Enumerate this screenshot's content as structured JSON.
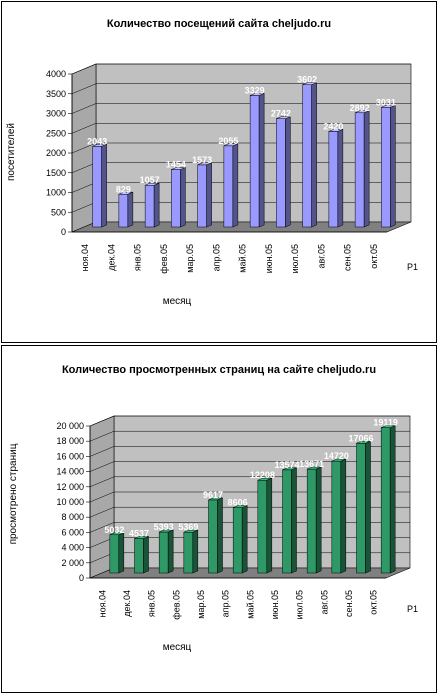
{
  "chart_data": [
    {
      "type": "bar",
      "title": "Количество посещений сайта cheljudo.ru",
      "xlabel": "месяц",
      "ylabel": "посетителей",
      "ylim": [
        0,
        4000
      ],
      "yticks": [
        "0",
        "500",
        "1000",
        "1500",
        "2000",
        "2500",
        "3000",
        "3500",
        "4000"
      ],
      "categories": [
        "ноя.04",
        "дек.04",
        "янв.05",
        "фев.05",
        "мар.05",
        "апр.05",
        "май.05",
        "июн.05",
        "июл.05",
        "авг.05",
        "сен.05",
        "окт.05"
      ],
      "series": [
        {
          "name": "Р1",
          "values": [
            2043,
            829,
            1057,
            1454,
            1573,
            2055,
            3329,
            2742,
            3602,
            2420,
            2892,
            3031
          ]
        }
      ],
      "data_labels": [
        "2043",
        "829",
        "1057",
        "1454",
        "1573",
        "2055",
        "3329",
        "2742",
        "3602",
        "2420",
        "2892",
        "3031"
      ],
      "color": "#9999ff",
      "grid": true,
      "legend_position": "right"
    },
    {
      "type": "bar",
      "title": "Количество просмотренных страниц на сайте cheljudo.ru",
      "xlabel": "месяц",
      "ylabel": "просмотрено страниц",
      "ylim": [
        0,
        20000
      ],
      "yticks": [
        "0",
        "2 000",
        "4 000",
        "6 000",
        "8 000",
        "10 000",
        "12 000",
        "14 000",
        "16 000",
        "18 000",
        "20 000"
      ],
      "categories": [
        "ноя.04",
        "дек.04",
        "янв.05",
        "фев.05",
        "мар.05",
        "апр.05",
        "май.05",
        "июн.05",
        "июл.05",
        "авг.05",
        "сен.05",
        "окт.05"
      ],
      "series": [
        {
          "name": "Р1",
          "values": [
            5032,
            4537,
            5393,
            5369,
            9617,
            8606,
            12208,
            13574,
            13671,
            14720,
            17066,
            19119
          ]
        }
      ],
      "data_labels": [
        "5032",
        "4537",
        "5393",
        "5369",
        "9617",
        "8606",
        "12208",
        "13574",
        "13671",
        "14720",
        "17066",
        "19119"
      ],
      "color": "#2e9966",
      "grid": true,
      "legend_position": "right"
    }
  ]
}
